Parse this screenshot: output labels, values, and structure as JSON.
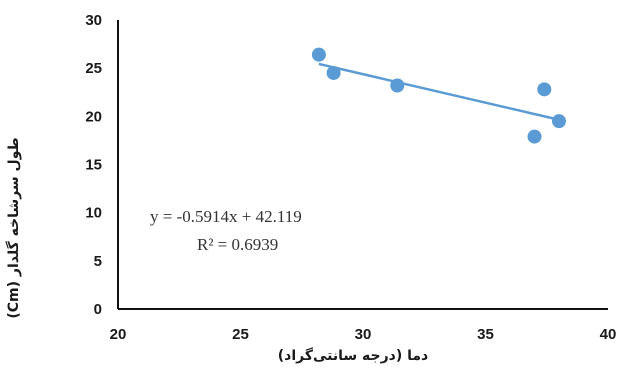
{
  "chart_data": {
    "type": "scatter",
    "xlabel": "دما (درجه سانتی‌گراد)",
    "ylabel": "طول سرشاخه گلدار (Cm)",
    "xlim": [
      20,
      40
    ],
    "ylim": [
      0,
      30
    ],
    "x_ticks": [
      "20",
      "25",
      "30",
      "35",
      "40"
    ],
    "y_ticks": [
      "0",
      "5",
      "10",
      "15",
      "20",
      "25",
      "30"
    ],
    "grid": false,
    "legend": "none",
    "series": [
      {
        "points": [
          {
            "x": 28.2,
            "y": 26.4
          },
          {
            "x": 28.8,
            "y": 24.5
          },
          {
            "x": 31.4,
            "y": 23.2
          },
          {
            "x": 37.0,
            "y": 17.9
          },
          {
            "x": 37.4,
            "y": 22.8
          },
          {
            "x": 38.0,
            "y": 19.5
          }
        ],
        "color": "#5b9bd5"
      }
    ],
    "trendline": {
      "slope": -0.5914,
      "intercept": 42.119,
      "x_range": [
        28.2,
        38.0
      ],
      "color": "#5b9bd5",
      "equation": "y = -0.5914x  + 42.119",
      "r_squared": "R² = 0.6939"
    }
  }
}
